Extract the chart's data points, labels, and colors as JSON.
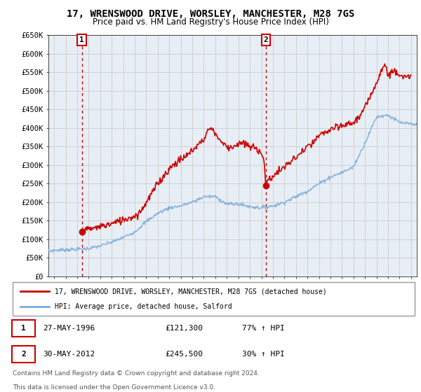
{
  "title": "17, WRENSWOOD DRIVE, WORSLEY, MANCHESTER, M28 7GS",
  "subtitle": "Price paid vs. HM Land Registry's House Price Index (HPI)",
  "legend_line1": "17, WRENSWOOD DRIVE, WORSLEY, MANCHESTER, M28 7GS (detached house)",
  "legend_line2": "HPI: Average price, detached house, Salford",
  "footer1": "Contains HM Land Registry data © Crown copyright and database right 2024.",
  "footer2": "This data is licensed under the Open Government Licence v3.0.",
  "ylim": [
    0,
    650000
  ],
  "ytick_vals": [
    0,
    50000,
    100000,
    150000,
    200000,
    250000,
    300000,
    350000,
    400000,
    450000,
    500000,
    550000,
    600000,
    650000
  ],
  "ytick_labels": [
    "£0",
    "£50K",
    "£100K",
    "£150K",
    "£200K",
    "£250K",
    "£300K",
    "£350K",
    "£400K",
    "£450K",
    "£500K",
    "£550K",
    "£600K",
    "£650K"
  ],
  "xlim_start": 1993.5,
  "xlim_end": 2025.5,
  "vline1_x": 1996.4,
  "vline2_x": 2012.4,
  "dot1_x": 1996.4,
  "dot1_y": 121300,
  "dot2_x": 2012.4,
  "dot2_y": 245500,
  "red_color": "#cc0000",
  "blue_color": "#7aacdc",
  "grid_color": "#cccccc",
  "plot_bg_color": "#e8eef5",
  "t1_date": "27-MAY-1996",
  "t1_price": "£121,300",
  "t1_hpi": "77% ↑ HPI",
  "t2_date": "30-MAY-2012",
  "t2_price": "£245,500",
  "t2_hpi": "30% ↑ HPI"
}
